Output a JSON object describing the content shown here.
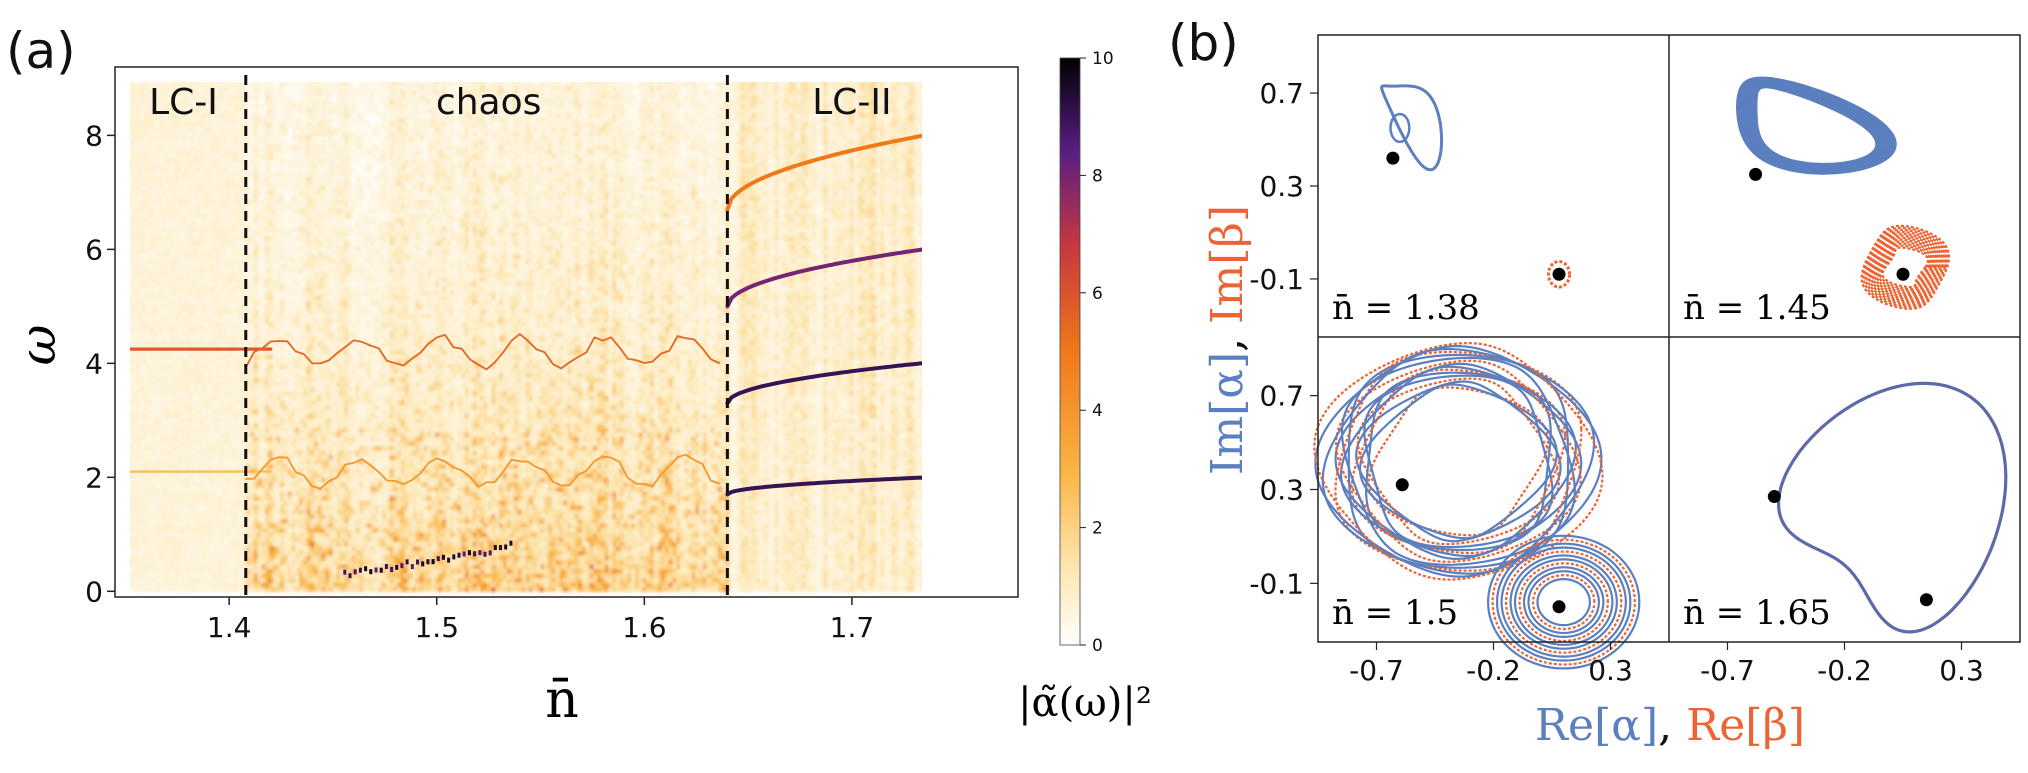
{
  "panel_a": {
    "label": "(a)",
    "xlabel": "n̄",
    "ylabel": "ω",
    "colorbar_label": "|α̃(ω)|²",
    "region_labels": [
      "LC-I",
      "chaos",
      "LC-II"
    ]
  },
  "panel_b": {
    "label": "(b)",
    "xlabel_parts": [
      "Re[α]",
      ", ",
      "Re[β]"
    ],
    "ylabel_parts": [
      "Im[α]",
      ", ",
      "Im[β]"
    ],
    "subplot_labels": [
      "n̄ = 1.38",
      "n̄ = 1.45",
      "n̄ = 1.5",
      "n̄ = 1.65"
    ]
  },
  "colors": {
    "alpha": "#5b7fbf",
    "beta": "#ec6434",
    "fixed_point": "#000000"
  },
  "chart_data": [
    {
      "type": "heatmap",
      "title": "(a)",
      "xlabel": "n̄",
      "ylabel": "ω",
      "xlim": [
        1.345,
        1.78
      ],
      "ylim": [
        -0.1,
        9.2
      ],
      "xticks": [
        "1.4",
        "1.5",
        "1.6",
        "1.7"
      ],
      "xtick_values": [
        1.4,
        1.5,
        1.6,
        1.7
      ],
      "yticks": [
        "0",
        "2",
        "4",
        "6",
        "8"
      ],
      "ytick_values": [
        0,
        2,
        4,
        6,
        8
      ],
      "data_xrange": [
        1.35,
        1.75
      ],
      "colorbar": {
        "label": "|α̃(ω)|²",
        "range": [
          0,
          10
        ],
        "ticks": [
          "0",
          "2",
          "4",
          "6",
          "8",
          "10"
        ],
        "tick_values": [
          0,
          2,
          4,
          6,
          8,
          10
        ]
      },
      "boundaries": [
        1.408,
        1.64
      ],
      "regions": [
        {
          "name": "LC-I",
          "center": 1.378
        },
        {
          "name": "chaos",
          "center": 1.525
        },
        {
          "name": "LC-II",
          "center": 1.7
        }
      ],
      "ridges_LC1": [
        {
          "omega": 4.25,
          "intensity": 6.5
        },
        {
          "omega": 2.1,
          "intensity": 3.0
        }
      ],
      "ridges_LC2": [
        {
          "omega0": 1.7,
          "omega1": 2.02,
          "intensity": 9
        },
        {
          "omega0": 3.3,
          "omega1": 4.06,
          "intensity": 9
        },
        {
          "omega0": 5.0,
          "omega1": 6.08,
          "intensity": 8
        },
        {
          "omega0": 6.7,
          "omega1": 8.1,
          "intensity": 5
        }
      ]
    },
    {
      "type": "scatter",
      "title": "(b)",
      "xlabel": "Re[α], Re[β]",
      "ylabel": "Im[α], Im[β]",
      "xticks": [
        "-0.7",
        "-0.2",
        "0.3"
      ],
      "xtick_values": [
        -0.7,
        -0.2,
        0.3
      ],
      "yticks": [
        "0.7",
        "0.3",
        "-0.1"
      ],
      "ytick_values": [
        0.7,
        0.3,
        -0.1
      ],
      "xlim": [
        -0.95,
        0.55
      ],
      "ylim": [
        -0.35,
        0.95
      ],
      "panels": [
        {
          "label": "n̄ = 1.38",
          "nbar": 1.38,
          "fixed_points": [
            [
              -0.63,
              0.42
            ],
            [
              0.08,
              -0.08
            ]
          ]
        },
        {
          "label": "n̄ = 1.45",
          "nbar": 1.45,
          "fixed_points": [
            [
              -0.58,
              0.35
            ],
            [
              0.05,
              -0.08
            ]
          ]
        },
        {
          "label": "n̄ = 1.5",
          "nbar": 1.5,
          "fixed_points": [
            [
              -0.59,
              0.32
            ],
            [
              0.08,
              -0.2
            ]
          ]
        },
        {
          "label": "n̄ = 1.65",
          "nbar": 1.65,
          "fixed_points": [
            [
              -0.5,
              0.27
            ],
            [
              0.15,
              -0.17
            ]
          ]
        }
      ]
    }
  ]
}
